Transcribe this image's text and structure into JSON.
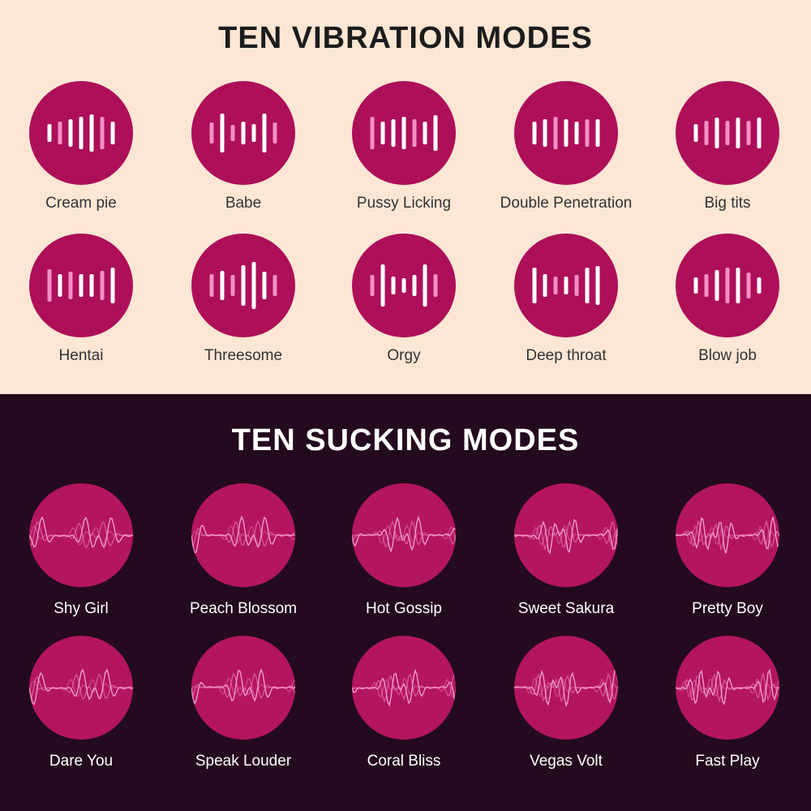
{
  "colors": {
    "top_background": "#fde6d4",
    "bottom_background": "#240a1e",
    "circle_magenta": "#ad0f59",
    "bar_white": "#ffffff",
    "bar_pink": "#f48fc1"
  },
  "vibration": {
    "title": "TEN VIBRATION MODES",
    "icon": "equalizer-bars-icon",
    "modes": [
      {
        "label": "Cream pie"
      },
      {
        "label": "Babe"
      },
      {
        "label": "Pussy Licking"
      },
      {
        "label": "Double Penetration"
      },
      {
        "label": "Big tits"
      },
      {
        "label": "Hentai"
      },
      {
        "label": "Threesome"
      },
      {
        "label": "Orgy"
      },
      {
        "label": "Deep throat"
      },
      {
        "label": "Blow job"
      }
    ]
  },
  "sucking": {
    "title": "TEN SUCKING MODES",
    "icon": "waveform-icon",
    "modes": [
      {
        "label": "Shy Girl"
      },
      {
        "label": "Peach Blossom"
      },
      {
        "label": "Hot Gossip"
      },
      {
        "label": "Sweet Sakura"
      },
      {
        "label": "Pretty Boy"
      },
      {
        "label": "Dare You"
      },
      {
        "label": "Speak Louder"
      },
      {
        "label": "Coral Bliss"
      },
      {
        "label": "Vegas Volt"
      },
      {
        "label": "Fast Play"
      }
    ]
  }
}
